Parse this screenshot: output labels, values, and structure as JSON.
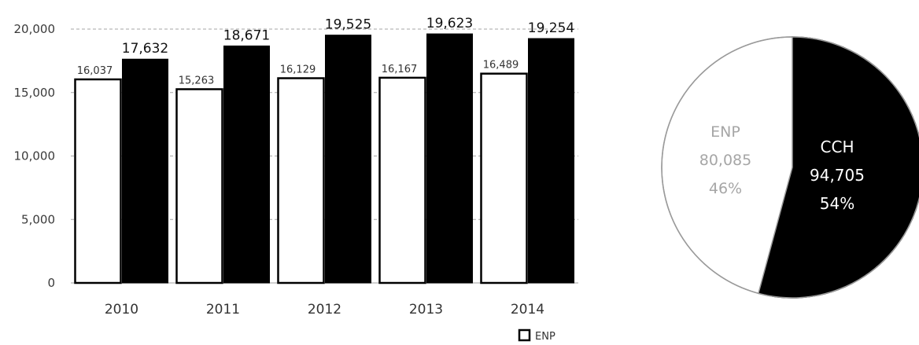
{
  "chart_data": [
    {
      "type": "bar",
      "categories": [
        "2010",
        "2011",
        "2012",
        "2013",
        "2014"
      ],
      "series": [
        {
          "name": "ENP",
          "values": [
            16037,
            15263,
            16129,
            16167,
            16489
          ],
          "labels": [
            "16,037",
            "15,263",
            "16,129",
            "16,167",
            "16,489"
          ],
          "fill": "#ffffff",
          "stroke": "#000000"
        },
        {
          "values": [
            17632,
            18671,
            19525,
            19623,
            19254
          ],
          "labels": [
            "17,632",
            "18,671",
            "19,525",
            "19,623",
            "19,254"
          ],
          "fill": "#000000",
          "stroke": "#000000"
        }
      ],
      "yticks": [
        0,
        5000,
        10000,
        15000,
        20000
      ],
      "ytick_labels": [
        "0",
        "5,000",
        "10,000",
        "15,000",
        "20,000"
      ],
      "ylim": [
        0,
        20000
      ],
      "grid": true,
      "legend": {
        "position": "bottom-right",
        "entries": [
          "ENP"
        ]
      }
    },
    {
      "type": "pie",
      "slices": [
        {
          "name": "CCH",
          "value": 94705,
          "value_label": "94,705",
          "percent_label": "54%",
          "color": "#000000"
        },
        {
          "name": "ENP",
          "value": 80085,
          "value_label": "80,085",
          "percent_label": "46%",
          "color": "#ffffff"
        }
      ]
    }
  ]
}
